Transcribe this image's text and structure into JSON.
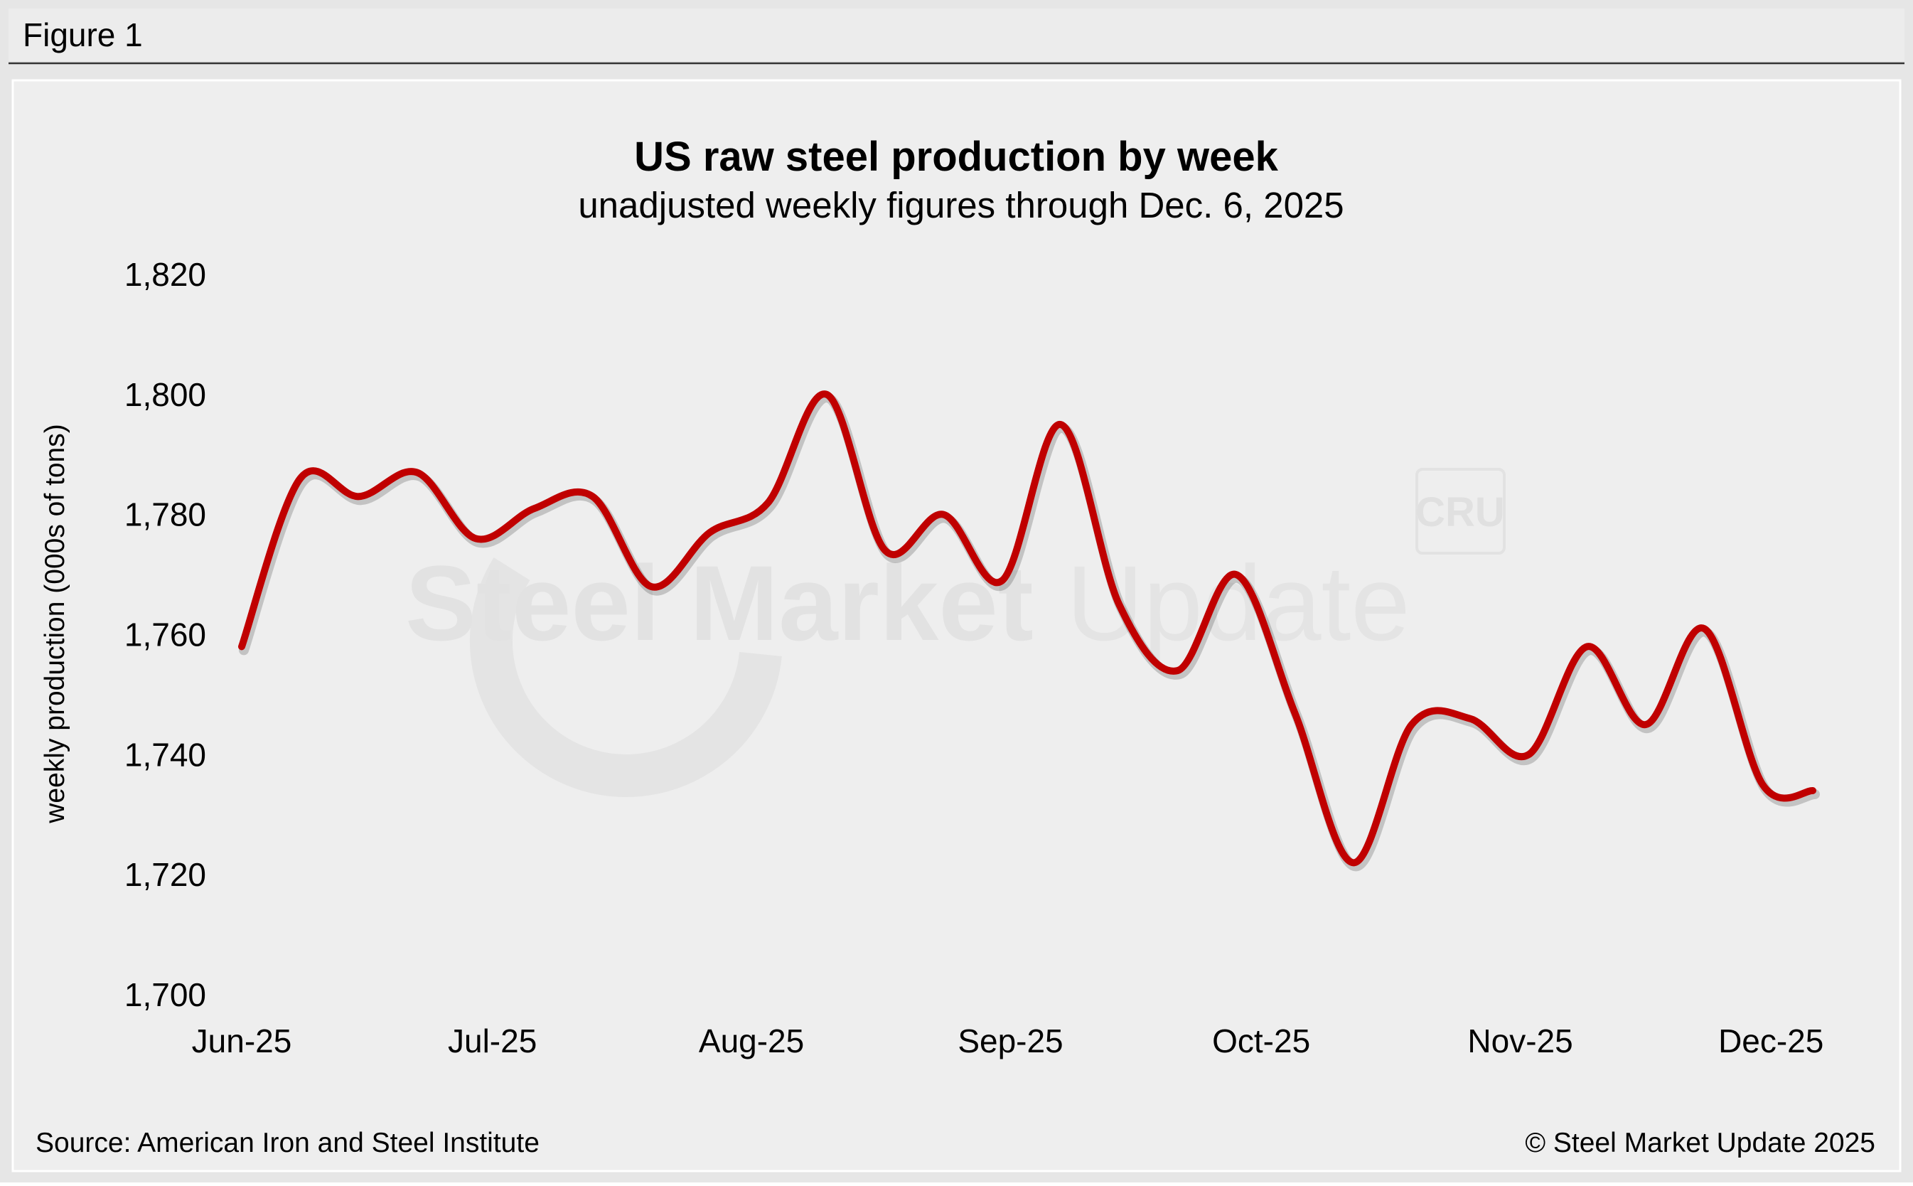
{
  "figure_label": "Figure 1",
  "watermark": {
    "brand_bold": "Steel Market",
    "brand_light": "Update",
    "badge": "CRU"
  },
  "source_text": "Source: American Iron and Steel Institute",
  "copyright_text": "© Steel Market Update 2025",
  "colors": {
    "line": "#c00000",
    "panel": "#eeeeee",
    "outer": "#e6e6e6",
    "text": "#000000",
    "watermark": "#e2e2e2"
  },
  "chart_data": {
    "type": "line",
    "title": "US raw steel production by week",
    "subtitle": "unadjusted weekly figures through Dec. 6, 2025",
    "ylabel": "weekly production (000s of tons)",
    "xlabel": "",
    "ylim": [
      1700,
      1820
    ],
    "yticks": [
      1700,
      1720,
      1740,
      1760,
      1780,
      1800,
      1820
    ],
    "ytick_labels": [
      "1,700",
      "1,720",
      "1,740",
      "1,760",
      "1,780",
      "1,800",
      "1,820"
    ],
    "xlim": [
      0,
      188
    ],
    "xticks": [
      {
        "label": "Jun-25",
        "pos": 0
      },
      {
        "label": "Jul-25",
        "pos": 30
      },
      {
        "label": "Aug-25",
        "pos": 61
      },
      {
        "label": "Sep-25",
        "pos": 92
      },
      {
        "label": "Oct-25",
        "pos": 122
      },
      {
        "label": "Nov-25",
        "pos": 153
      },
      {
        "label": "Dec-25",
        "pos": 183
      }
    ],
    "grid": false,
    "legend": "none",
    "series": [
      {
        "name": "US raw steel production",
        "x": [
          0,
          7,
          14,
          21,
          28,
          35,
          42,
          49,
          56,
          63,
          70,
          77,
          84,
          91,
          98,
          105,
          112,
          119,
          126,
          133,
          140,
          147,
          154,
          161,
          168,
          175,
          182,
          188
        ],
        "values": [
          1758,
          1786,
          1783,
          1787,
          1776,
          1781,
          1783,
          1768,
          1777,
          1782,
          1800,
          1774,
          1780,
          1769,
          1795,
          1765,
          1754,
          1770,
          1747,
          1722,
          1745,
          1746,
          1740,
          1758,
          1745,
          1761,
          1735,
          1734
        ]
      }
    ]
  }
}
